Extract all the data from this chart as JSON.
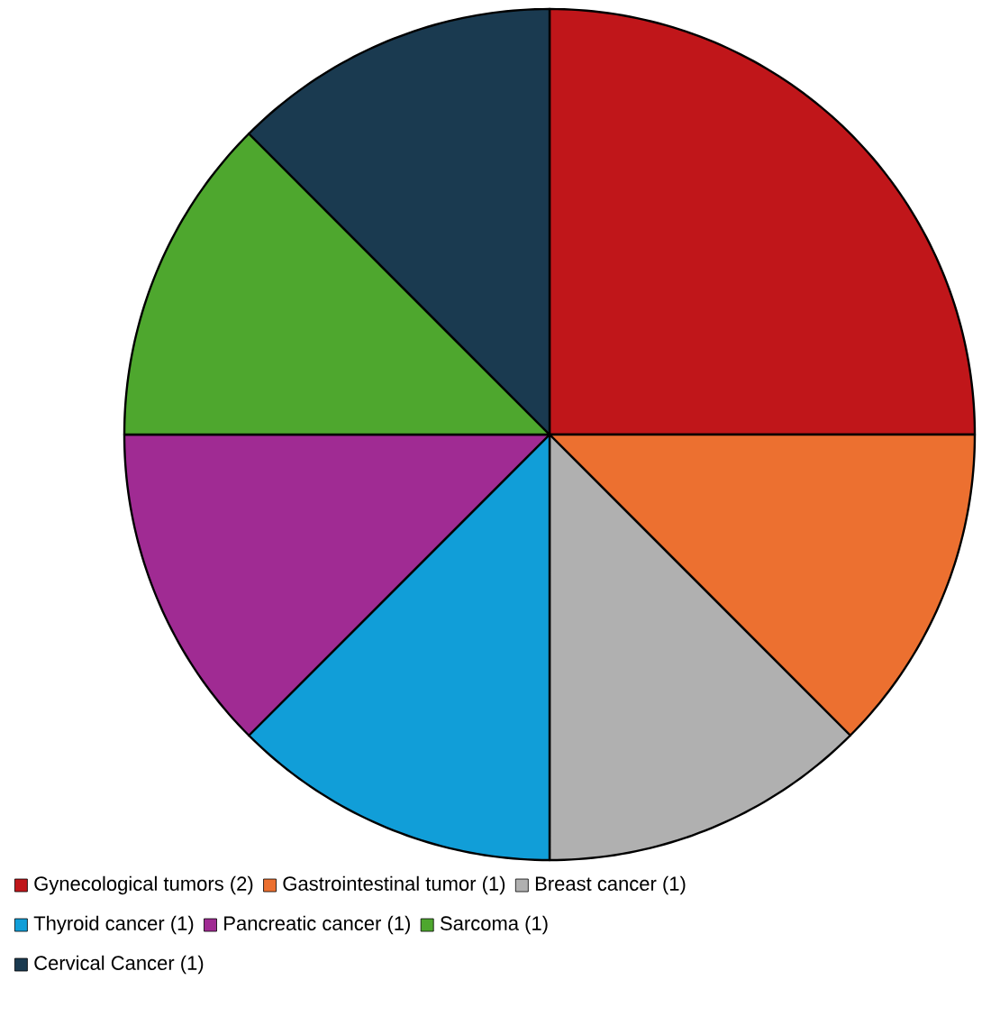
{
  "chart_data": {
    "type": "pie",
    "categories": [
      "Gynecological tumors (2)",
      "Gastrointestinal tumor (1)",
      "Breast cancer (1)",
      "Thyroid cancer (1)",
      "Pancreatic cancer (1)",
      "Sarcoma (1)",
      "Cervical Cancer (1)"
    ],
    "values": [
      2,
      1,
      1,
      1,
      1,
      1,
      1
    ],
    "colors": [
      "#c0161a",
      "#ec7030",
      "#b0b0b0",
      "#119ed8",
      "#a02b93",
      "#4ea72e",
      "#1a3a50"
    ],
    "legend": "bottom"
  }
}
